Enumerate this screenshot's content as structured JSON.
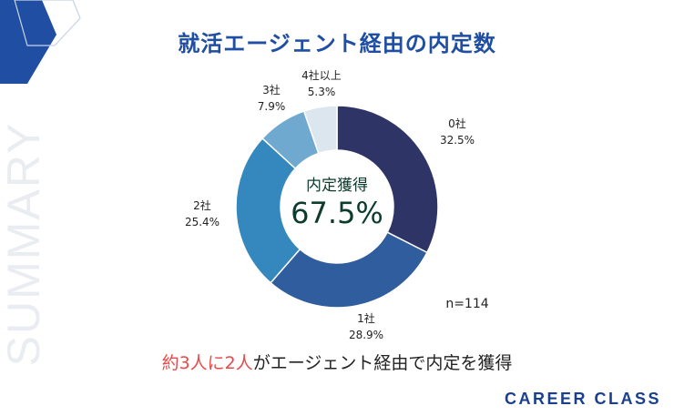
{
  "title": "就活エージェント経由の内定数",
  "side_label": "SUMMARY",
  "center": {
    "label": "内定獲得",
    "value": "67.5%"
  },
  "sample_size": "n=114",
  "caption": {
    "part1": "約3人に2人",
    "part2": "がエージェント経由で内定を獲得"
  },
  "brand": "CAREER CLASS",
  "colors": {
    "title": "#1f4ea3",
    "highlight": "#e84a4a",
    "center_text": "#0d3b2e",
    "brand": "#1a3f8f"
  },
  "chart_data": {
    "type": "pie",
    "categories": [
      "0社",
      "1社",
      "2社",
      "3社",
      "4社以上"
    ],
    "values": [
      32.5,
      28.9,
      25.4,
      7.9,
      5.3
    ],
    "value_labels": [
      "32.5%",
      "28.9%",
      "25.4%",
      "7.9%",
      "5.3%"
    ],
    "colors": [
      "#2e3466",
      "#2f5d9e",
      "#3488bd",
      "#6fa9cf",
      "#dbe6ef"
    ],
    "donut": true
  }
}
